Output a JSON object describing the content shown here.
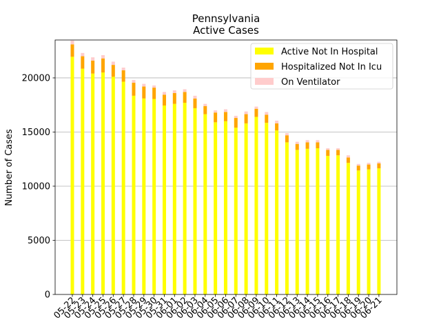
{
  "chart_data": {
    "type": "bar",
    "stacked": true,
    "title": "Pennsylvania",
    "subtitle": "Active Cases",
    "xlabel": "",
    "ylabel": "Number of Cases",
    "ylim": [
      0,
      23500
    ],
    "yticks": [
      0,
      5000,
      10000,
      15000,
      20000
    ],
    "grid": "horizontal",
    "legend_position": "top-right",
    "categories": [
      "05-22",
      "05-23",
      "05-24",
      "05-25",
      "05-26",
      "05-27",
      "05-28",
      "05-29",
      "05-30",
      "05-31",
      "06-01",
      "06-02",
      "06-03",
      "06-04",
      "06-05",
      "06-06",
      "06-07",
      "06-08",
      "06-09",
      "06-10",
      "06-11",
      "06-12",
      "06-13",
      "06-14",
      "06-15",
      "06-16",
      "06-17",
      "06-18",
      "06-19",
      "06-20",
      "06-21"
    ],
    "series": [
      {
        "name": "Active Not In Hospital",
        "color": "#ffff00",
        "values": [
          21950,
          20850,
          20400,
          20500,
          20100,
          19650,
          18350,
          18100,
          18050,
          17450,
          17600,
          17700,
          17200,
          16650,
          15900,
          16000,
          15400,
          15800,
          16400,
          15850,
          15150,
          14050,
          13350,
          13450,
          13500,
          12800,
          12850,
          12150,
          11450,
          11550,
          11650
        ]
      },
      {
        "name": "Hospitalized Not In Icu",
        "color": "#ffa500",
        "values": [
          1150,
          1150,
          1200,
          1300,
          1100,
          1050,
          1200,
          1100,
          1050,
          1000,
          1000,
          1000,
          900,
          750,
          900,
          850,
          900,
          850,
          750,
          750,
          650,
          650,
          550,
          600,
          550,
          550,
          500,
          500,
          450,
          450,
          450
        ]
      },
      {
        "name": "On Ventilator",
        "color": "#ffcccc",
        "values": [
          350,
          300,
          300,
          300,
          300,
          250,
          250,
          250,
          200,
          250,
          250,
          250,
          250,
          200,
          200,
          250,
          200,
          250,
          200,
          250,
          250,
          200,
          200,
          200,
          200,
          150,
          150,
          200,
          150,
          150,
          150
        ]
      }
    ]
  }
}
